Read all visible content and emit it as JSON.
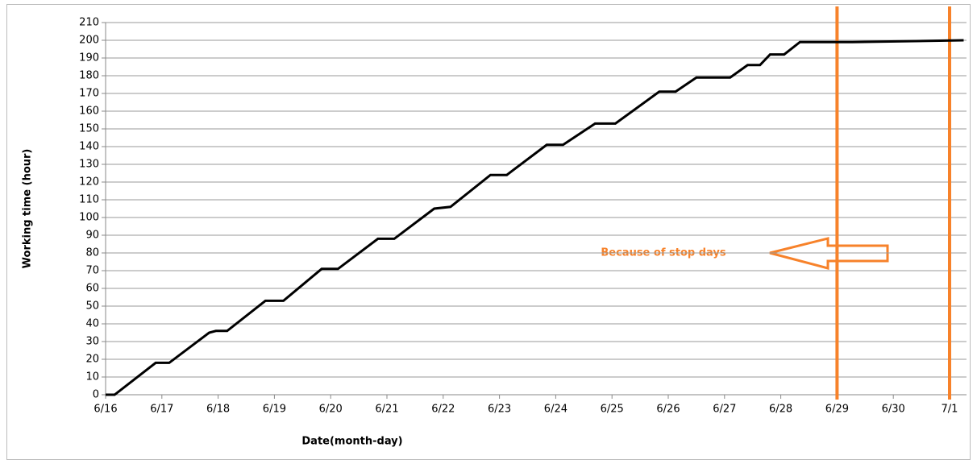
{
  "chart_data": {
    "type": "line",
    "xlabel": "Date(month-day)",
    "ylabel": "Working time (hour)",
    "annotation": "Because of stop days",
    "xlim": [
      0,
      15.3
    ],
    "xticks": [
      {
        "value": 0,
        "label": "6/16"
      },
      {
        "value": 1,
        "label": "6/17"
      },
      {
        "value": 2,
        "label": "6/18"
      },
      {
        "value": 3,
        "label": "6/19"
      },
      {
        "value": 4,
        "label": "6/20"
      },
      {
        "value": 5,
        "label": "6/21"
      },
      {
        "value": 6,
        "label": "6/22"
      },
      {
        "value": 7,
        "label": "6/23"
      },
      {
        "value": 8,
        "label": "6/24"
      },
      {
        "value": 9,
        "label": "6/25"
      },
      {
        "value": 10,
        "label": "6/26"
      },
      {
        "value": 11,
        "label": "6/27"
      },
      {
        "value": 12,
        "label": "6/28"
      },
      {
        "value": 13,
        "label": "6/29"
      },
      {
        "value": 14,
        "label": "6/30"
      },
      {
        "value": 15,
        "label": "7/1"
      }
    ],
    "ylim": [
      0,
      210
    ],
    "yticks": [
      0,
      10,
      20,
      30,
      40,
      50,
      60,
      70,
      80,
      90,
      100,
      110,
      120,
      130,
      140,
      150,
      160,
      170,
      180,
      190,
      200,
      210
    ],
    "grid": true,
    "vlines": [
      13,
      15
    ],
    "vline_color": "#f7822a",
    "series": [
      {
        "color": "#000000",
        "x": [
          0,
          0.16,
          0.89,
          1.13,
          1.84,
          1.96,
          2.16,
          2.84,
          3.16,
          3.84,
          4.13,
          4.84,
          5.13,
          5.84,
          6.13,
          6.84,
          7.13,
          7.84,
          8.13,
          8.7,
          9.06,
          9.84,
          10.13,
          10.5,
          11.1,
          11.41,
          11.63,
          11.81,
          12.06,
          12.34,
          13.27,
          15.25
        ],
        "values": [
          0,
          0,
          18,
          18,
          35,
          36,
          36,
          53,
          53,
          71,
          71,
          88,
          88,
          105,
          106,
          124,
          124,
          141,
          141,
          153,
          153,
          171,
          171,
          179,
          179,
          186,
          186,
          192,
          192,
          199,
          199,
          200
        ]
      }
    ]
  }
}
